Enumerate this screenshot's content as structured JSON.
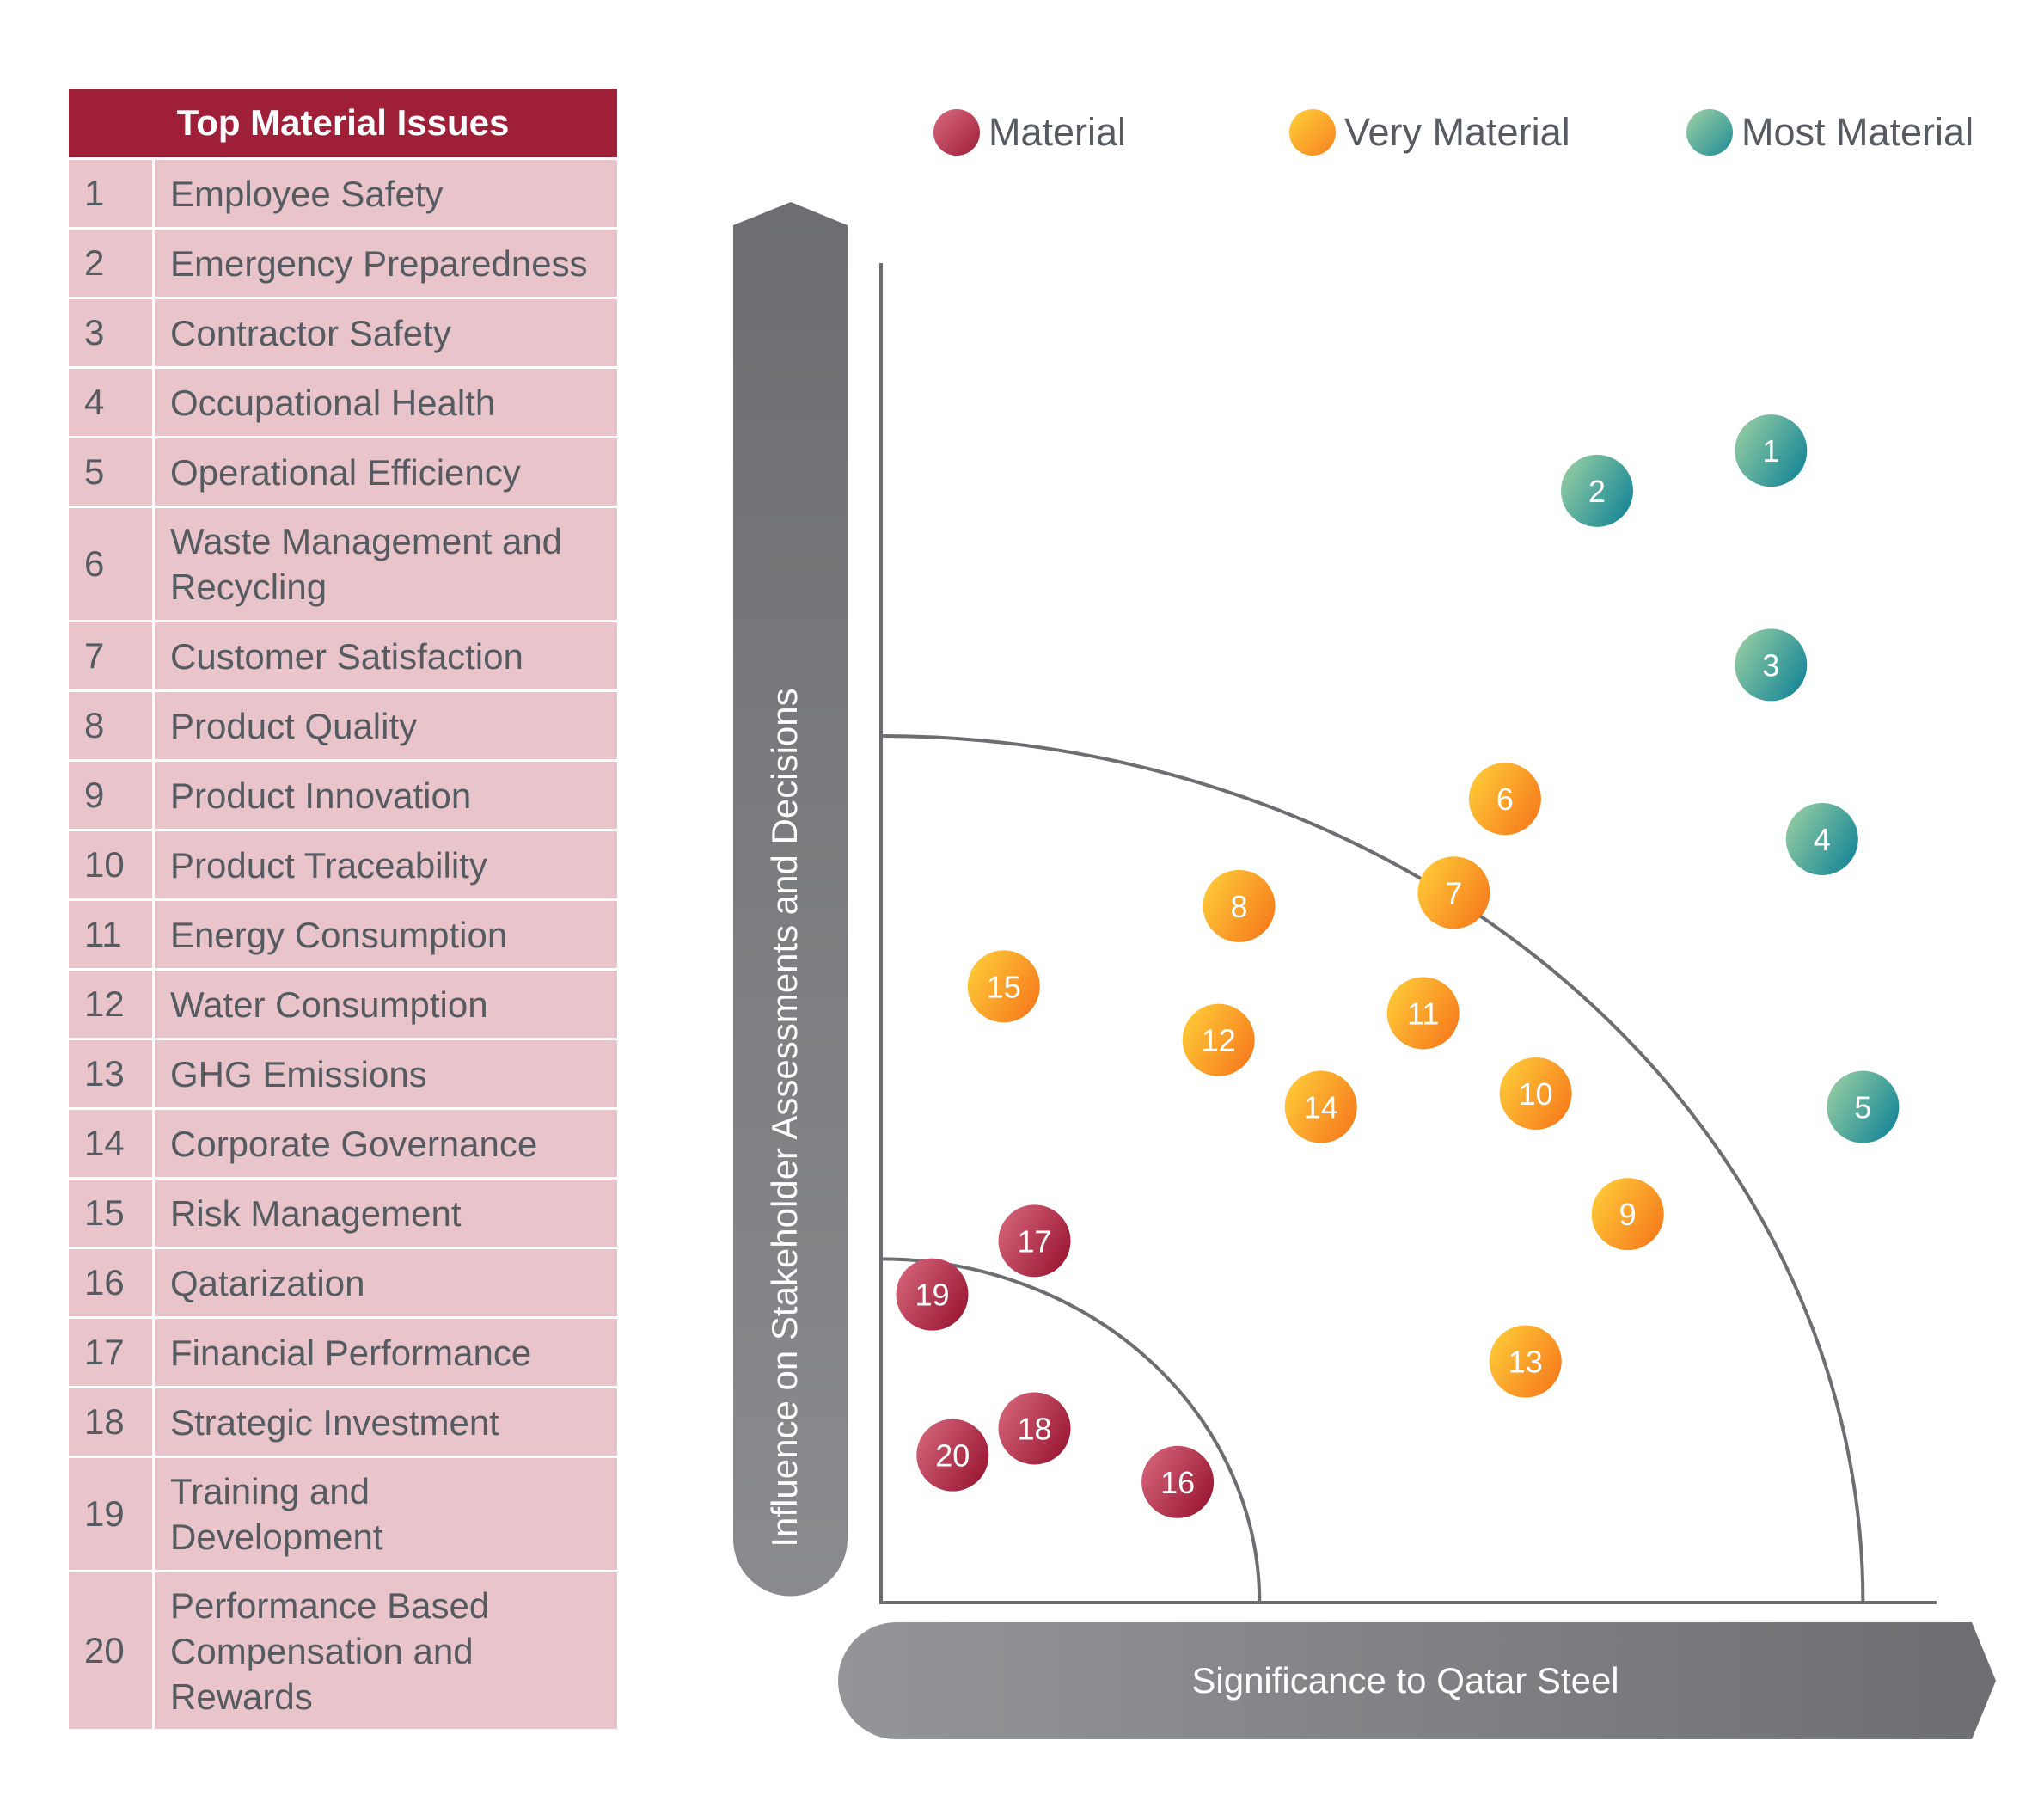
{
  "table": {
    "title": "Top Material Issues",
    "rows": [
      {
        "num": "1",
        "text": "Employee Safety"
      },
      {
        "num": "2",
        "text": "Emergency Preparedness"
      },
      {
        "num": "3",
        "text": "Contractor Safety"
      },
      {
        "num": "4",
        "text": "Occupational Health"
      },
      {
        "num": "5",
        "text": "Operational Efficiency"
      },
      {
        "num": "6",
        "text": "Waste Management and Recycling"
      },
      {
        "num": "7",
        "text": "Customer Satisfaction"
      },
      {
        "num": "8",
        "text": "Product Quality"
      },
      {
        "num": "9",
        "text": "Product Innovation"
      },
      {
        "num": "10",
        "text": "Product Traceability"
      },
      {
        "num": "11",
        "text": "Energy Consumption"
      },
      {
        "num": "12",
        "text": "Water Consumption"
      },
      {
        "num": "13",
        "text": "GHG Emissions"
      },
      {
        "num": "14",
        "text": "Corporate Governance"
      },
      {
        "num": "15",
        "text": "Risk Management"
      },
      {
        "num": "16",
        "text": "Qatarization"
      },
      {
        "num": "17",
        "text": "Financial Performance"
      },
      {
        "num": "18",
        "text": "Strategic Investment"
      },
      {
        "num": "19",
        "text": "Training and Development"
      },
      {
        "num": "20",
        "text": "Performance Based Compensation and Rewards"
      }
    ]
  },
  "legend": [
    {
      "label": "Material",
      "category": "material"
    },
    {
      "label": "Very Material",
      "category": "very"
    },
    {
      "label": "Most Material",
      "category": "most"
    }
  ],
  "colors": {
    "material": [
      "#d96b7f",
      "#9e1c38"
    ],
    "very": [
      "#ffd23a",
      "#f7801f"
    ],
    "most": [
      "#9fd3a3",
      "#1f8b98"
    ],
    "table_header": "#a01f38",
    "table_fill": "#e9c5cb",
    "axis": "#6d6e71"
  },
  "chart_data": {
    "type": "scatter",
    "xlabel": "Significance to Qatar Steel",
    "ylabel": "Influence on Stakeholder Assessments and Decisions",
    "xlim": [
      0,
      1
    ],
    "ylim": [
      0,
      1
    ],
    "grid": false,
    "legend_position": "top",
    "thresholds": [
      {
        "between": "Material / Very Material",
        "radius": 0.37
      },
      {
        "between": "Very Material / Most Material",
        "radius": 0.96
      }
    ],
    "points": [
      {
        "label": "1",
        "x": 0.87,
        "y": 0.86,
        "category": "most"
      },
      {
        "label": "2",
        "x": 0.7,
        "y": 0.83,
        "category": "most"
      },
      {
        "label": "3",
        "x": 0.87,
        "y": 0.7,
        "category": "most"
      },
      {
        "label": "4",
        "x": 0.92,
        "y": 0.57,
        "category": "most"
      },
      {
        "label": "5",
        "x": 0.96,
        "y": 0.37,
        "category": "most"
      },
      {
        "label": "6",
        "x": 0.61,
        "y": 0.6,
        "category": "very"
      },
      {
        "label": "7",
        "x": 0.56,
        "y": 0.53,
        "category": "very"
      },
      {
        "label": "8",
        "x": 0.35,
        "y": 0.52,
        "category": "very"
      },
      {
        "label": "9",
        "x": 0.73,
        "y": 0.29,
        "category": "very"
      },
      {
        "label": "10",
        "x": 0.64,
        "y": 0.38,
        "category": "very"
      },
      {
        "label": "11",
        "x": 0.53,
        "y": 0.44,
        "category": "very"
      },
      {
        "label": "12",
        "x": 0.33,
        "y": 0.42,
        "category": "very"
      },
      {
        "label": "13",
        "x": 0.63,
        "y": 0.18,
        "category": "very"
      },
      {
        "label": "14",
        "x": 0.43,
        "y": 0.37,
        "category": "very"
      },
      {
        "label": "15",
        "x": 0.12,
        "y": 0.46,
        "category": "very"
      },
      {
        "label": "16",
        "x": 0.29,
        "y": 0.09,
        "category": "material"
      },
      {
        "label": "17",
        "x": 0.15,
        "y": 0.27,
        "category": "material"
      },
      {
        "label": "18",
        "x": 0.15,
        "y": 0.13,
        "category": "material"
      },
      {
        "label": "19",
        "x": 0.05,
        "y": 0.23,
        "category": "material"
      },
      {
        "label": "20",
        "x": 0.07,
        "y": 0.11,
        "category": "material"
      }
    ]
  }
}
